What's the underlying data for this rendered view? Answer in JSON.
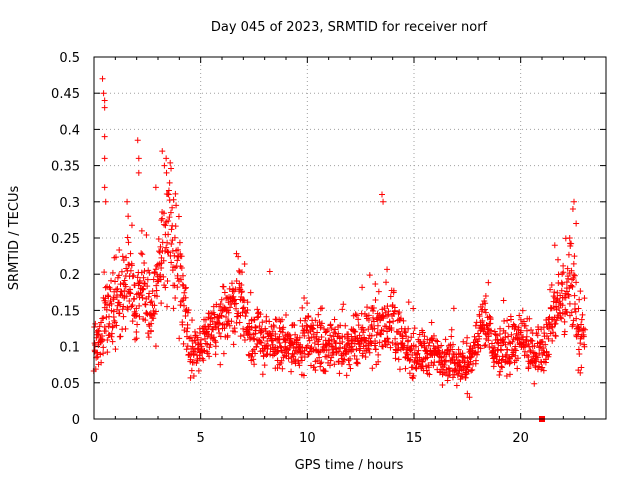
{
  "chart_data": {
    "type": "scatter",
    "title": "Day 045 of 2023, SRMTID for receiver norf",
    "xlabel": "GPS time / hours",
    "ylabel": "SRMTID / TECUs",
    "xlim": [
      0,
      24
    ],
    "ylim": [
      0,
      0.5
    ],
    "xticks": [
      0,
      5,
      10,
      15,
      20
    ],
    "xtick_labels": [
      "0",
      "5",
      "10",
      "15",
      "20"
    ],
    "yticks": [
      0,
      0.05,
      0.1,
      0.15,
      0.2,
      0.25,
      0.3,
      0.35,
      0.4,
      0.45,
      0.5
    ],
    "ytick_labels": [
      "0",
      "0.05",
      "0.1",
      "0.15",
      "0.2",
      "0.25",
      "0.3",
      "0.35",
      "0.4",
      "0.45",
      "0.5"
    ],
    "grid": true,
    "marker": "+",
    "color": "#ff0000",
    "square_marker": {
      "x": 21.0,
      "y": 0.0
    },
    "trend": [
      [
        0.0,
        0.11
      ],
      [
        0.3,
        0.1
      ],
      [
        0.5,
        0.16
      ],
      [
        0.8,
        0.14
      ],
      [
        1.2,
        0.17
      ],
      [
        1.6,
        0.2
      ],
      [
        2.0,
        0.15
      ],
      [
        2.3,
        0.19
      ],
      [
        2.7,
        0.14
      ],
      [
        3.0,
        0.2
      ],
      [
        3.3,
        0.24
      ],
      [
        3.6,
        0.26
      ],
      [
        3.9,
        0.22
      ],
      [
        4.2,
        0.18
      ],
      [
        4.5,
        0.1
      ],
      [
        5.0,
        0.1
      ],
      [
        5.5,
        0.12
      ],
      [
        6.0,
        0.13
      ],
      [
        6.5,
        0.16
      ],
      [
        6.8,
        0.18
      ],
      [
        7.2,
        0.12
      ],
      [
        8.0,
        0.11
      ],
      [
        9.0,
        0.1
      ],
      [
        10.0,
        0.11
      ],
      [
        11.0,
        0.1
      ],
      [
        12.0,
        0.1
      ],
      [
        12.5,
        0.11
      ],
      [
        13.0,
        0.12
      ],
      [
        13.6,
        0.13
      ],
      [
        14.0,
        0.14
      ],
      [
        14.5,
        0.1
      ],
      [
        15.0,
        0.09
      ],
      [
        16.0,
        0.09
      ],
      [
        17.0,
        0.08
      ],
      [
        17.5,
        0.07
      ],
      [
        18.0,
        0.11
      ],
      [
        18.3,
        0.14
      ],
      [
        18.7,
        0.1
      ],
      [
        19.0,
        0.09
      ],
      [
        19.5,
        0.1
      ],
      [
        20.0,
        0.11
      ],
      [
        20.5,
        0.09
      ],
      [
        21.0,
        0.1
      ],
      [
        21.5,
        0.14
      ],
      [
        22.0,
        0.17
      ],
      [
        22.4,
        0.19
      ],
      [
        22.7,
        0.12
      ],
      [
        23.0,
        0.11
      ]
    ],
    "spikes": [
      [
        0.4,
        0.47
      ],
      [
        0.45,
        0.45
      ],
      [
        0.5,
        0.44
      ],
      [
        0.5,
        0.43
      ],
      [
        0.5,
        0.39
      ],
      [
        0.5,
        0.36
      ],
      [
        0.5,
        0.32
      ],
      [
        0.55,
        0.3
      ],
      [
        2.05,
        0.385
      ],
      [
        2.1,
        0.36
      ],
      [
        2.1,
        0.34
      ],
      [
        3.2,
        0.37
      ],
      [
        3.3,
        0.35
      ],
      [
        3.4,
        0.34
      ],
      [
        2.9,
        0.32
      ],
      [
        1.55,
        0.3
      ],
      [
        1.6,
        0.28
      ],
      [
        3.5,
        0.31
      ],
      [
        13.5,
        0.31
      ],
      [
        13.55,
        0.3
      ],
      [
        22.5,
        0.3
      ],
      [
        22.45,
        0.29
      ],
      [
        22.6,
        0.27
      ],
      [
        22.3,
        0.25
      ],
      [
        21.6,
        0.24
      ],
      [
        21.75,
        0.22
      ],
      [
        17.6,
        0.03
      ],
      [
        17.5,
        0.035
      ]
    ],
    "sample_step_hours": 0.0125,
    "sample_range": [
      0,
      23
    ]
  }
}
